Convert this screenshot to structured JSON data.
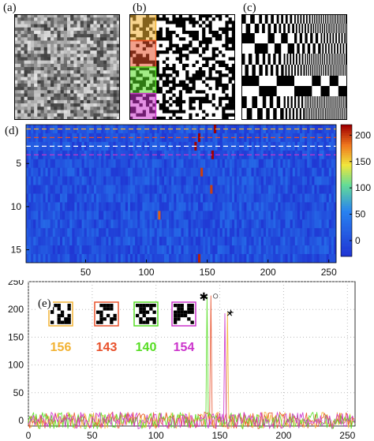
{
  "panels": {
    "a": {
      "label": "(a)"
    },
    "b": {
      "label": "(b)"
    },
    "c": {
      "label": "(c)"
    },
    "d": {
      "label": "(d)"
    },
    "e": {
      "label": "(e)"
    }
  },
  "colors": {
    "pattern_orange": "#f2b233",
    "pattern_red": "#e8502a",
    "pattern_green": "#55dd22",
    "pattern_magenta": "#cc33cc",
    "heat_low": "#1f3fd6",
    "heat_high": "#a00000"
  },
  "chart_data": [
    {
      "type": "heatmap",
      "panel": "(d)",
      "x_ticks": [
        "50",
        "100",
        "150",
        "200",
        "250"
      ],
      "y_ticks": [
        "5",
        "10",
        "15"
      ],
      "xlim": [
        1,
        256
      ],
      "ylim": [
        1,
        16
      ],
      "colorbar": {
        "ticks": [
          "200",
          "150",
          "100",
          "50",
          "0"
        ],
        "range": [
          -30,
          220
        ]
      },
      "highlighted_rows": [
        1,
        2,
        3,
        4
      ],
      "peaks": [
        {
          "row": 1,
          "x": 156,
          "value": 220
        },
        {
          "row": 2,
          "x": 143,
          "value": 220
        },
        {
          "row": 3,
          "x": 140,
          "value": 220
        },
        {
          "row": 4,
          "x": 154,
          "value": 220
        },
        {
          "row": 6,
          "x": 145,
          "value": 200
        },
        {
          "row": 8,
          "x": 153,
          "value": 200
        },
        {
          "row": 11,
          "x": 110,
          "value": 190
        },
        {
          "row": 16,
          "x": 143,
          "value": 210
        }
      ]
    },
    {
      "type": "line",
      "panel": "(e)",
      "x_ticks": [
        "0",
        "50",
        "100",
        "150",
        "200",
        "250"
      ],
      "y_ticks": [
        "250",
        "200",
        "150",
        "100",
        "50",
        "0",
        "-10"
      ],
      "xlim": [
        0,
        256
      ],
      "ylim": [
        -10,
        250
      ],
      "series": [
        {
          "label": "156",
          "color": "#f2b233",
          "peak_x": 156,
          "peak_y": 195,
          "marker": "+"
        },
        {
          "label": "143",
          "color": "#e8502a",
          "peak_x": 143,
          "peak_y": 225,
          "marker": "o"
        },
        {
          "label": "140",
          "color": "#55dd22",
          "peak_x": 140,
          "peak_y": 223,
          "marker": "*"
        },
        {
          "label": "154",
          "color": "#cc33cc",
          "peak_x": 154,
          "peak_y": 193,
          "marker": "x"
        }
      ]
    }
  ]
}
